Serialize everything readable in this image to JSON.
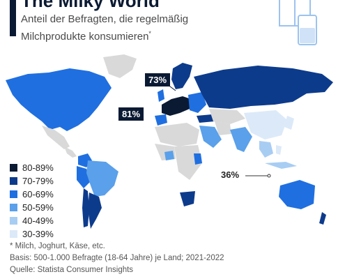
{
  "header": {
    "title": "The Milky World",
    "subtitle_line1": "Anteil der Befragten, die regelmäßig",
    "subtitle_line2": "Milchprodukte konsumieren",
    "subtitle_marker": "*"
  },
  "map": {
    "callouts": [
      {
        "value": "73%",
        "region": "Nordeuropa"
      },
      {
        "value": "81%",
        "region": "Westeuropa"
      },
      {
        "value": "36%",
        "region": "Südostasien"
      }
    ]
  },
  "legend": [
    {
      "label": "80-89%",
      "color": "#0b1a33"
    },
    {
      "label": "70-79%",
      "color": "#0d3b8c"
    },
    {
      "label": "60-69%",
      "color": "#1f6fe0"
    },
    {
      "label": "50-59%",
      "color": "#5aa0ea"
    },
    {
      "label": "40-49%",
      "color": "#a8cdf3"
    },
    {
      "label": "30-39%",
      "color": "#dce9f8"
    }
  ],
  "colors": {
    "no_data": "#d9d9d9",
    "title_accent": "#0b1a33"
  },
  "footer": {
    "note": "* Milch, Joghurt, Käse, etc.",
    "basis": "Basis: 500-1.000 Befragte (18-64 Jahre) je Land; 2021-2022",
    "source": "Quelle: Statista Consumer Insights"
  }
}
